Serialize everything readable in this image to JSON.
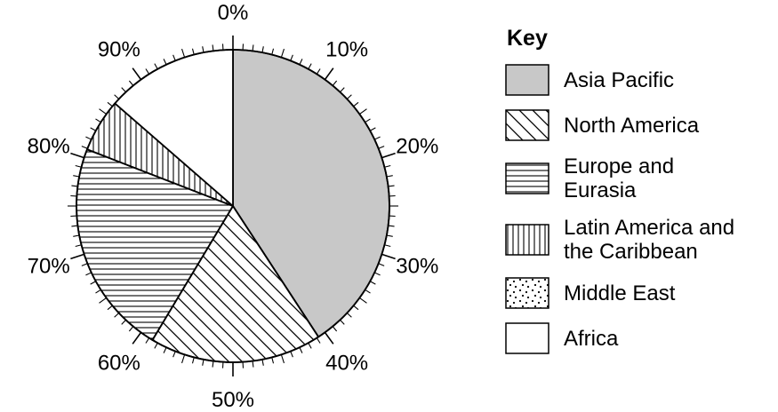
{
  "chart_data": {
    "type": "pie",
    "key_title": "Key",
    "categories": [
      "Asia Pacific",
      "North America",
      "Europe and Eurasia",
      "Latin America and the Caribbean",
      "Middle East",
      "Africa"
    ],
    "legend_lines": [
      [
        "Asia Pacific"
      ],
      [
        "North America"
      ],
      [
        "Europe and",
        "Eurasia"
      ],
      [
        "Latin America and",
        "the Caribbean"
      ],
      [
        "Middle East"
      ],
      [
        "Africa"
      ]
    ],
    "values": [
      40.8,
      17.8,
      22.3,
      5.5,
      0,
      13.6
    ],
    "fills": [
      "solid-gray",
      "diagonal-hatch",
      "horizontal-lines",
      "vertical-lines",
      "dots",
      "white"
    ],
    "colors": {
      "gray": "#c8c8c8",
      "line": "#000000",
      "background": "#ffffff"
    },
    "scale_labels": [
      "0%",
      "10%",
      "20%",
      "30%",
      "40%",
      "50%",
      "60%",
      "70%",
      "80%",
      "90%"
    ],
    "scale_unit": "percent",
    "legend_position": "right",
    "title": ""
  }
}
